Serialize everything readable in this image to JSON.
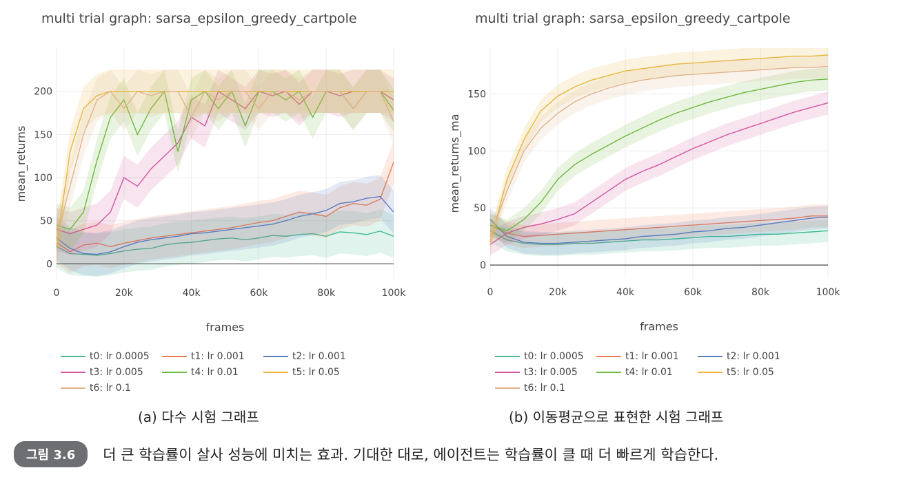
{
  "chart_data": [
    {
      "type": "line",
      "title": "multi trial graph: sarsa_epsilon_greedy_cartpole",
      "subcaption": "(a) 다수 시험 그래프",
      "xlabel": "frames",
      "ylabel": "mean_returns",
      "xlim": [
        0,
        100000
      ],
      "ylim": [
        -18,
        250
      ],
      "x_ticks": [
        0,
        20000,
        40000,
        60000,
        80000,
        100000
      ],
      "x_tick_labels": [
        "0",
        "20k",
        "40k",
        "60k",
        "80k",
        "100k"
      ],
      "y_ticks": [
        0,
        50,
        100,
        150,
        200
      ],
      "y_tick_labels": [
        "0",
        "50",
        "100",
        "150",
        "200"
      ],
      "grid": true,
      "band_width": 25,
      "legend_position": "bottom-left",
      "x": [
        0,
        4000,
        8000,
        12000,
        16000,
        20000,
        24000,
        28000,
        32000,
        36000,
        40000,
        44000,
        48000,
        52000,
        56000,
        60000,
        64000,
        68000,
        72000,
        76000,
        80000,
        84000,
        88000,
        92000,
        96000,
        100000
      ],
      "series": [
        {
          "name": "t0: lr 0.0005",
          "color": "#3dba8f",
          "values": [
            20,
            12,
            11,
            10,
            12,
            15,
            17,
            18,
            22,
            24,
            25,
            27,
            29,
            30,
            28,
            30,
            33,
            32,
            34,
            35,
            32,
            37,
            36,
            34,
            38,
            32
          ]
        },
        {
          "name": "t1: lr 0.001",
          "color": "#ef7b52",
          "values": [
            25,
            14,
            22,
            24,
            20,
            24,
            27,
            30,
            32,
            34,
            36,
            38,
            40,
            42,
            45,
            48,
            50,
            55,
            60,
            58,
            55,
            65,
            70,
            68,
            75,
            118
          ]
        },
        {
          "name": "t2: lr 0.001",
          "color": "#5a7cbf",
          "values": [
            30,
            18,
            12,
            11,
            14,
            20,
            25,
            28,
            30,
            32,
            35,
            36,
            38,
            40,
            42,
            44,
            46,
            50,
            55,
            58,
            62,
            70,
            72,
            76,
            78,
            60
          ]
        },
        {
          "name": "t3: lr 0.005",
          "color": "#d1559e",
          "values": [
            40,
            35,
            40,
            45,
            60,
            100,
            90,
            110,
            125,
            140,
            170,
            160,
            200,
            190,
            180,
            200,
            195,
            200,
            185,
            200,
            200,
            195,
            200,
            200,
            200,
            190
          ]
        },
        {
          "name": "t4: lr 0.01",
          "color": "#6db93d",
          "values": [
            45,
            40,
            60,
            120,
            170,
            190,
            150,
            180,
            200,
            130,
            190,
            200,
            180,
            200,
            160,
            200,
            200,
            190,
            200,
            170,
            200,
            200,
            180,
            200,
            200,
            178
          ]
        },
        {
          "name": "t5: lr 0.05",
          "color": "#e8b53a",
          "values": [
            20,
            130,
            180,
            195,
            200,
            200,
            200,
            200,
            200,
            200,
            200,
            200,
            200,
            200,
            200,
            200,
            200,
            200,
            200,
            200,
            200,
            200,
            200,
            200,
            200,
            200
          ]
        },
        {
          "name": "t6: lr 0.1",
          "color": "#e0b38a",
          "values": [
            30,
            90,
            150,
            190,
            200,
            180,
            200,
            195,
            200,
            200,
            170,
            200,
            190,
            200,
            200,
            180,
            200,
            200,
            190,
            200,
            200,
            200,
            180,
            200,
            200,
            165
          ]
        }
      ]
    },
    {
      "type": "line",
      "title": "multi trial graph: sarsa_epsilon_greedy_cartpole",
      "subcaption": "(b) 이동평균으로 표현한 시험 그래프",
      "xlabel": "frames",
      "ylabel": "mean_returns_ma",
      "xlim": [
        0,
        100000
      ],
      "ylim": [
        -12,
        190
      ],
      "x_ticks": [
        0,
        20000,
        40000,
        60000,
        80000,
        100000
      ],
      "x_tick_labels": [
        "0",
        "20k",
        "40k",
        "60k",
        "80k",
        "100k"
      ],
      "y_ticks": [
        0,
        50,
        100,
        150
      ],
      "y_tick_labels": [
        "0",
        "50",
        "100",
        "150"
      ],
      "grid": true,
      "band_width": 10,
      "legend_position": "bottom-left",
      "x": [
        0,
        5000,
        10000,
        15000,
        20000,
        25000,
        30000,
        35000,
        40000,
        45000,
        50000,
        55000,
        60000,
        65000,
        70000,
        75000,
        80000,
        85000,
        90000,
        95000,
        100000
      ],
      "series": [
        {
          "name": "t0: lr 0.0005",
          "color": "#3dba8f",
          "values": [
            30,
            22,
            19,
            18,
            18,
            19,
            19,
            20,
            21,
            22,
            22,
            23,
            24,
            25,
            25,
            26,
            27,
            27,
            28,
            29,
            30
          ]
        },
        {
          "name": "t1: lr 0.001",
          "color": "#ef7b52",
          "values": [
            35,
            28,
            25,
            26,
            27,
            28,
            29,
            30,
            31,
            32,
            33,
            34,
            35,
            36,
            37,
            38,
            39,
            40,
            41,
            43,
            43
          ]
        },
        {
          "name": "t2: lr 0.001",
          "color": "#5a7cbf",
          "values": [
            40,
            25,
            20,
            19,
            19,
            20,
            21,
            22,
            23,
            25,
            26,
            27,
            29,
            30,
            32,
            33,
            35,
            37,
            39,
            41,
            42
          ]
        },
        {
          "name": "t3: lr 0.005",
          "color": "#d1559e",
          "values": [
            18,
            28,
            33,
            36,
            40,
            45,
            55,
            65,
            75,
            82,
            88,
            95,
            102,
            108,
            114,
            119,
            124,
            129,
            134,
            138,
            142
          ]
        },
        {
          "name": "t4: lr 0.01",
          "color": "#6db93d",
          "values": [
            35,
            30,
            40,
            55,
            75,
            88,
            97,
            105,
            113,
            120,
            127,
            133,
            138,
            143,
            147,
            151,
            154,
            157,
            160,
            162,
            163
          ]
        },
        {
          "name": "t5: lr 0.05",
          "color": "#e8b53a",
          "values": [
            20,
            75,
            110,
            135,
            148,
            156,
            162,
            166,
            170,
            172,
            174,
            176,
            177,
            178,
            179,
            180,
            181,
            182,
            183,
            183,
            184
          ]
        },
        {
          "name": "t6: lr 0.1",
          "color": "#e0b38a",
          "values": [
            25,
            65,
            100,
            120,
            133,
            143,
            150,
            155,
            159,
            162,
            164,
            166,
            167,
            168,
            169,
            170,
            171,
            172,
            173,
            173,
            174
          ]
        }
      ]
    }
  ],
  "caption": {
    "badge": "그림 3.6",
    "text": "더 큰 학습률이 살사 성능에 미치는 효과. 기대한 대로, 에이전트는 학습률이 클 때 더 빠르게 학습한다."
  }
}
